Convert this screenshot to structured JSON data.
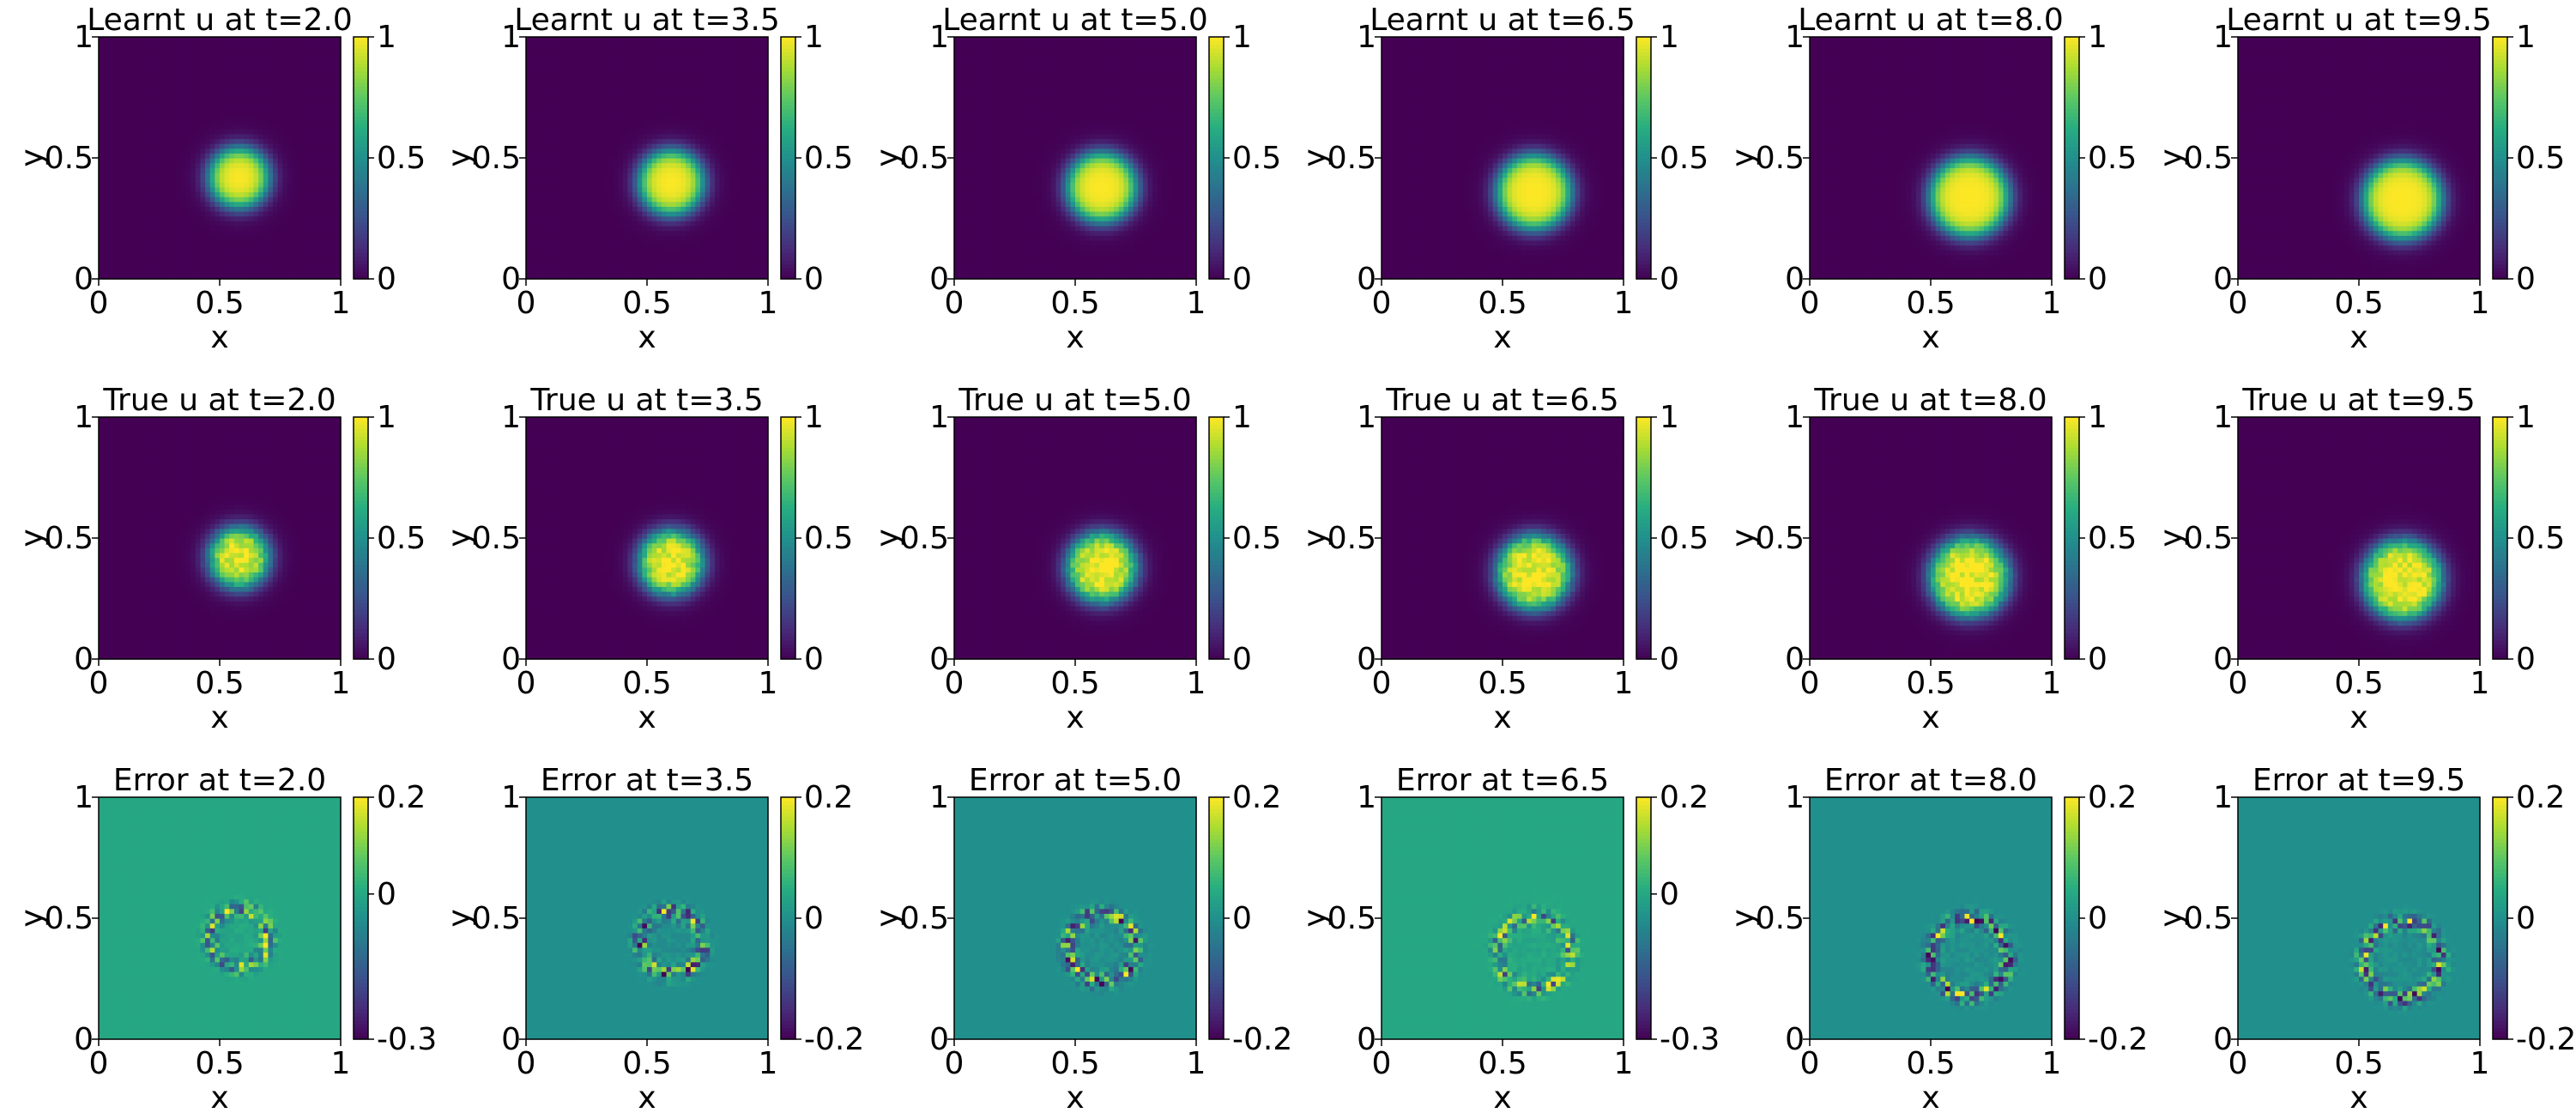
{
  "chart_data": [
    {
      "type": "heatmap",
      "title": "Learnt u at t=2.0",
      "xlabel": "x",
      "ylabel": "y",
      "xlim": [
        0,
        1
      ],
      "ylim": [
        0,
        1
      ],
      "x_ticks": [
        "0",
        "0.5",
        "1"
      ],
      "y_ticks": [
        "0",
        "0.5",
        "1"
      ],
      "colorbar": {
        "range": [
          0,
          1
        ],
        "ticks": [
          "0",
          "0.5",
          "1"
        ]
      },
      "colormap": "viridis",
      "field": {
        "kind": "blob",
        "center": [
          0.58,
          0.42
        ],
        "radius": 0.12,
        "peak": 1.0
      }
    },
    {
      "type": "heatmap",
      "title": "Learnt u at t=3.5",
      "xlabel": "x",
      "ylabel": "y",
      "xlim": [
        0,
        1
      ],
      "ylim": [
        0,
        1
      ],
      "x_ticks": [
        "0",
        "0.5",
        "1"
      ],
      "y_ticks": [
        "0",
        "0.5",
        "1"
      ],
      "colorbar": {
        "range": [
          0,
          1
        ],
        "ticks": [
          "0",
          "0.5",
          "1"
        ]
      },
      "colormap": "viridis",
      "field": {
        "kind": "blob",
        "center": [
          0.6,
          0.4
        ],
        "radius": 0.13,
        "peak": 1.0
      }
    },
    {
      "type": "heatmap",
      "title": "Learnt u at t=5.0",
      "xlabel": "x",
      "ylabel": "y",
      "xlim": [
        0,
        1
      ],
      "ylim": [
        0,
        1
      ],
      "x_ticks": [
        "0",
        "0.5",
        "1"
      ],
      "y_ticks": [
        "0",
        "0.5",
        "1"
      ],
      "colorbar": {
        "range": [
          0,
          1
        ],
        "ticks": [
          "0",
          "0.5",
          "1"
        ]
      },
      "colormap": "viridis",
      "field": {
        "kind": "blob",
        "center": [
          0.61,
          0.38
        ],
        "radius": 0.14,
        "peak": 1.0
      }
    },
    {
      "type": "heatmap",
      "title": "Learnt u at t=6.5",
      "xlabel": "x",
      "ylabel": "y",
      "xlim": [
        0,
        1
      ],
      "ylim": [
        0,
        1
      ],
      "x_ticks": [
        "0",
        "0.5",
        "1"
      ],
      "y_ticks": [
        "0",
        "0.5",
        "1"
      ],
      "colorbar": {
        "range": [
          0,
          1
        ],
        "ticks": [
          "0",
          "0.5",
          "1"
        ]
      },
      "colormap": "viridis",
      "field": {
        "kind": "blob",
        "center": [
          0.63,
          0.36
        ],
        "radius": 0.15,
        "peak": 1.0
      }
    },
    {
      "type": "heatmap",
      "title": "Learnt u at t=8.0",
      "xlabel": "x",
      "ylabel": "y",
      "xlim": [
        0,
        1
      ],
      "ylim": [
        0,
        1
      ],
      "x_ticks": [
        "0",
        "0.5",
        "1"
      ],
      "y_ticks": [
        "0",
        "0.5",
        "1"
      ],
      "colorbar": {
        "range": [
          0,
          1
        ],
        "ticks": [
          "0",
          "0.5",
          "1"
        ]
      },
      "colormap": "viridis",
      "field": {
        "kind": "blob",
        "center": [
          0.66,
          0.34
        ],
        "radius": 0.16,
        "peak": 1.0
      }
    },
    {
      "type": "heatmap",
      "title": "Learnt u at t=9.5",
      "xlabel": "x",
      "ylabel": "y",
      "xlim": [
        0,
        1
      ],
      "ylim": [
        0,
        1
      ],
      "x_ticks": [
        "0",
        "0.5",
        "1"
      ],
      "y_ticks": [
        "0",
        "0.5",
        "1"
      ],
      "colorbar": {
        "range": [
          0,
          1
        ],
        "ticks": [
          "0",
          "0.5",
          "1"
        ]
      },
      "colormap": "viridis",
      "field": {
        "kind": "blob",
        "center": [
          0.68,
          0.33
        ],
        "radius": 0.16,
        "peak": 1.0
      }
    },
    {
      "type": "heatmap",
      "title": "True u at t=2.0",
      "xlabel": "x",
      "ylabel": "y",
      "xlim": [
        0,
        1
      ],
      "ylim": [
        0,
        1
      ],
      "x_ticks": [
        "0",
        "0.5",
        "1"
      ],
      "y_ticks": [
        "0",
        "0.5",
        "1"
      ],
      "colorbar": {
        "range": [
          0,
          1
        ],
        "ticks": [
          "0",
          "0.5",
          "1"
        ]
      },
      "colormap": "viridis",
      "field": {
        "kind": "blob_noisy",
        "center": [
          0.58,
          0.42
        ],
        "radius": 0.12,
        "peak": 1.0
      }
    },
    {
      "type": "heatmap",
      "title": "True u at t=3.5",
      "xlabel": "x",
      "ylabel": "y",
      "xlim": [
        0,
        1
      ],
      "ylim": [
        0,
        1
      ],
      "x_ticks": [
        "0",
        "0.5",
        "1"
      ],
      "y_ticks": [
        "0",
        "0.5",
        "1"
      ],
      "colorbar": {
        "range": [
          0,
          1
        ],
        "ticks": [
          "0",
          "0.5",
          "1"
        ]
      },
      "colormap": "viridis",
      "field": {
        "kind": "blob_noisy",
        "center": [
          0.6,
          0.4
        ],
        "radius": 0.13,
        "peak": 1.0
      }
    },
    {
      "type": "heatmap",
      "title": "True u at t=5.0",
      "xlabel": "x",
      "ylabel": "y",
      "xlim": [
        0,
        1
      ],
      "ylim": [
        0,
        1
      ],
      "x_ticks": [
        "0",
        "0.5",
        "1"
      ],
      "y_ticks": [
        "0",
        "0.5",
        "1"
      ],
      "colorbar": {
        "range": [
          0,
          1
        ],
        "ticks": [
          "0",
          "0.5",
          "1"
        ]
      },
      "colormap": "viridis",
      "field": {
        "kind": "blob_noisy",
        "center": [
          0.61,
          0.38
        ],
        "radius": 0.14,
        "peak": 1.0
      }
    },
    {
      "type": "heatmap",
      "title": "True u at t=6.5",
      "xlabel": "x",
      "ylabel": "y",
      "xlim": [
        0,
        1
      ],
      "ylim": [
        0,
        1
      ],
      "x_ticks": [
        "0",
        "0.5",
        "1"
      ],
      "y_ticks": [
        "0",
        "0.5",
        "1"
      ],
      "colorbar": {
        "range": [
          0,
          1
        ],
        "ticks": [
          "0",
          "0.5",
          "1"
        ]
      },
      "colormap": "viridis",
      "field": {
        "kind": "blob_noisy",
        "center": [
          0.63,
          0.36
        ],
        "radius": 0.15,
        "peak": 1.0
      }
    },
    {
      "type": "heatmap",
      "title": "True u at t=8.0",
      "xlabel": "x",
      "ylabel": "y",
      "xlim": [
        0,
        1
      ],
      "ylim": [
        0,
        1
      ],
      "x_ticks": [
        "0",
        "0.5",
        "1"
      ],
      "y_ticks": [
        "0",
        "0.5",
        "1"
      ],
      "colorbar": {
        "range": [
          0,
          1
        ],
        "ticks": [
          "0",
          "0.5",
          "1"
        ]
      },
      "colormap": "viridis",
      "field": {
        "kind": "blob_noisy",
        "center": [
          0.66,
          0.34
        ],
        "radius": 0.16,
        "peak": 1.0
      }
    },
    {
      "type": "heatmap",
      "title": "True u at t=9.5",
      "xlabel": "x",
      "ylabel": "y",
      "xlim": [
        0,
        1
      ],
      "ylim": [
        0,
        1
      ],
      "x_ticks": [
        "0",
        "0.5",
        "1"
      ],
      "y_ticks": [
        "0",
        "0.5",
        "1"
      ],
      "colorbar": {
        "range": [
          0,
          1
        ],
        "ticks": [
          "0",
          "0.5",
          "1"
        ]
      },
      "colormap": "viridis",
      "field": {
        "kind": "blob_noisy",
        "center": [
          0.68,
          0.33
        ],
        "radius": 0.16,
        "peak": 1.0
      }
    },
    {
      "type": "heatmap",
      "title": "Error at t=2.0",
      "xlabel": "x",
      "ylabel": "y",
      "xlim": [
        0,
        1
      ],
      "ylim": [
        0,
        1
      ],
      "x_ticks": [
        "0",
        "0.5",
        "1"
      ],
      "y_ticks": [
        "0",
        "0.5",
        "1"
      ],
      "colorbar": {
        "range": [
          -0.3,
          0.2
        ],
        "ticks": [
          "0.2",
          "0",
          "-0.3"
        ],
        "tick_values": [
          0.2,
          0,
          -0.3
        ]
      },
      "colormap": "viridis",
      "field": {
        "kind": "ring_error",
        "center": [
          0.58,
          0.42
        ],
        "radius": 0.12,
        "background": 0
      }
    },
    {
      "type": "heatmap",
      "title": "Error at t=3.5",
      "xlabel": "x",
      "ylabel": "y",
      "xlim": [
        0,
        1
      ],
      "ylim": [
        0,
        1
      ],
      "x_ticks": [
        "0",
        "0.5",
        "1"
      ],
      "y_ticks": [
        "0",
        "0.5",
        "1"
      ],
      "colorbar": {
        "range": [
          -0.2,
          0.2
        ],
        "ticks": [
          "0.2",
          "0",
          "-0.2"
        ],
        "tick_values": [
          0.2,
          0,
          -0.2
        ]
      },
      "colormap": "viridis",
      "field": {
        "kind": "ring_error",
        "center": [
          0.6,
          0.4
        ],
        "radius": 0.13,
        "background": 0
      }
    },
    {
      "type": "heatmap",
      "title": "Error at t=5.0",
      "xlabel": "x",
      "ylabel": "y",
      "xlim": [
        0,
        1
      ],
      "ylim": [
        0,
        1
      ],
      "x_ticks": [
        "0",
        "0.5",
        "1"
      ],
      "y_ticks": [
        "0",
        "0.5",
        "1"
      ],
      "colorbar": {
        "range": [
          -0.2,
          0.2
        ],
        "ticks": [
          "0.2",
          "0",
          "-0.2"
        ],
        "tick_values": [
          0.2,
          0,
          -0.2
        ]
      },
      "colormap": "viridis",
      "field": {
        "kind": "ring_error",
        "center": [
          0.61,
          0.38
        ],
        "radius": 0.14,
        "background": 0
      }
    },
    {
      "type": "heatmap",
      "title": "Error at t=6.5",
      "xlabel": "x",
      "ylabel": "y",
      "xlim": [
        0,
        1
      ],
      "ylim": [
        0,
        1
      ],
      "x_ticks": [
        "0",
        "0.5",
        "1"
      ],
      "y_ticks": [
        "0",
        "0.5",
        "1"
      ],
      "colorbar": {
        "range": [
          -0.3,
          0.2
        ],
        "ticks": [
          "0.2",
          "0",
          "-0.3"
        ],
        "tick_values": [
          0.2,
          0,
          -0.3
        ]
      },
      "colormap": "viridis",
      "field": {
        "kind": "ring_error",
        "center": [
          0.63,
          0.36
        ],
        "radius": 0.15,
        "background": 0
      }
    },
    {
      "type": "heatmap",
      "title": "Error at t=8.0",
      "xlabel": "x",
      "ylabel": "y",
      "xlim": [
        0,
        1
      ],
      "ylim": [
        0,
        1
      ],
      "x_ticks": [
        "0",
        "0.5",
        "1"
      ],
      "y_ticks": [
        "0",
        "0.5",
        "1"
      ],
      "colorbar": {
        "range": [
          -0.2,
          0.2
        ],
        "ticks": [
          "0.2",
          "0",
          "-0.2"
        ],
        "tick_values": [
          0.2,
          0,
          -0.2
        ]
      },
      "colormap": "viridis",
      "field": {
        "kind": "ring_error",
        "center": [
          0.66,
          0.34
        ],
        "radius": 0.16,
        "background": 0
      }
    },
    {
      "type": "heatmap",
      "title": "Error at t=9.5",
      "xlabel": "x",
      "ylabel": "y",
      "xlim": [
        0,
        1
      ],
      "ylim": [
        0,
        1
      ],
      "x_ticks": [
        "0",
        "0.5",
        "1"
      ],
      "y_ticks": [
        "0",
        "0.5",
        "1"
      ],
      "colorbar": {
        "range": [
          -0.2,
          0.2
        ],
        "ticks": [
          "0.2",
          "0",
          "-0.2"
        ],
        "tick_values": [
          0.2,
          0,
          -0.2
        ]
      },
      "colormap": "viridis",
      "field": {
        "kind": "ring_error",
        "center": [
          0.68,
          0.33
        ],
        "radius": 0.16,
        "background": 0
      }
    }
  ]
}
